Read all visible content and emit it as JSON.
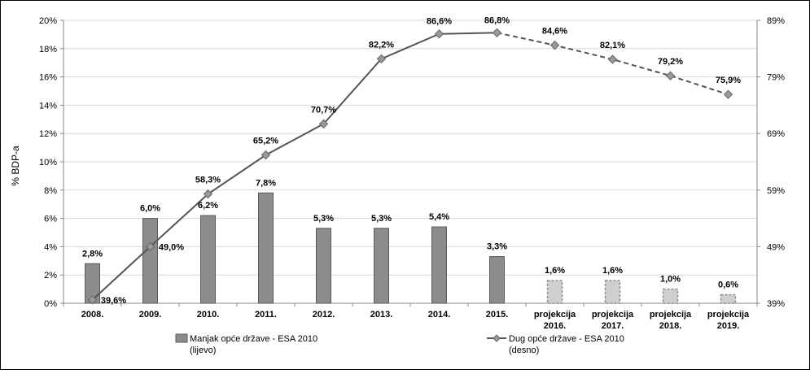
{
  "chart_data": {
    "type": "bar",
    "ylabel": "% BDP-a",
    "categories": [
      [
        "2008."
      ],
      [
        "2009."
      ],
      [
        "2010."
      ],
      [
        "2011."
      ],
      [
        "2012."
      ],
      [
        "2013."
      ],
      [
        "2014."
      ],
      [
        "2015."
      ],
      [
        "projekcija",
        "2016."
      ],
      [
        "projekcija",
        "2017."
      ],
      [
        "projekcija",
        "2018."
      ],
      [
        "projekcija",
        "2019."
      ]
    ],
    "left_axis": {
      "ylim": [
        0,
        20
      ],
      "ticks": [
        "0%",
        "2%",
        "4%",
        "6%",
        "8%",
        "10%",
        "12%",
        "14%",
        "16%",
        "18%",
        "20%"
      ]
    },
    "right_axis": {
      "ylim": [
        39,
        89
      ],
      "ticks": [
        "39%",
        "49%",
        "59%",
        "69%",
        "79%",
        "89%"
      ]
    },
    "series": [
      {
        "name": "Manjak opće države - ESA 2010",
        "name_line2": "(lijevo)",
        "type": "bar",
        "axis": "left",
        "color": "#8c8c8c",
        "values": [
          2.8,
          6.0,
          6.2,
          7.8,
          5.3,
          5.3,
          5.4,
          3.3,
          1.6,
          1.6,
          1.0,
          0.6
        ],
        "labels": [
          "2,8%",
          "6,0%",
          "6,2%",
          "7,8%",
          "5,3%",
          "5,3%",
          "5,4%",
          "3,3%",
          "1,6%",
          "1,6%",
          "1,0%",
          "0,6%"
        ],
        "projected_from_index": 8
      },
      {
        "name": "Dug opće države - ESA 2010",
        "name_line2": "(desno)",
        "type": "line",
        "axis": "right",
        "color": "#555555",
        "marker_color": "#999999",
        "values": [
          39.6,
          49.0,
          58.3,
          65.2,
          70.7,
          82.2,
          86.6,
          86.8,
          84.6,
          82.1,
          79.2,
          75.9
        ],
        "labels": [
          "39,6%",
          "49,0%",
          "58,3%",
          "65,2%",
          "70,7%",
          "82,2%",
          "86,6%",
          "86,8%",
          "84,6%",
          "82,1%",
          "79,2%",
          "75,9%"
        ],
        "projected_from_index": 7
      }
    ],
    "grid": true,
    "legend_position": "bottom"
  }
}
